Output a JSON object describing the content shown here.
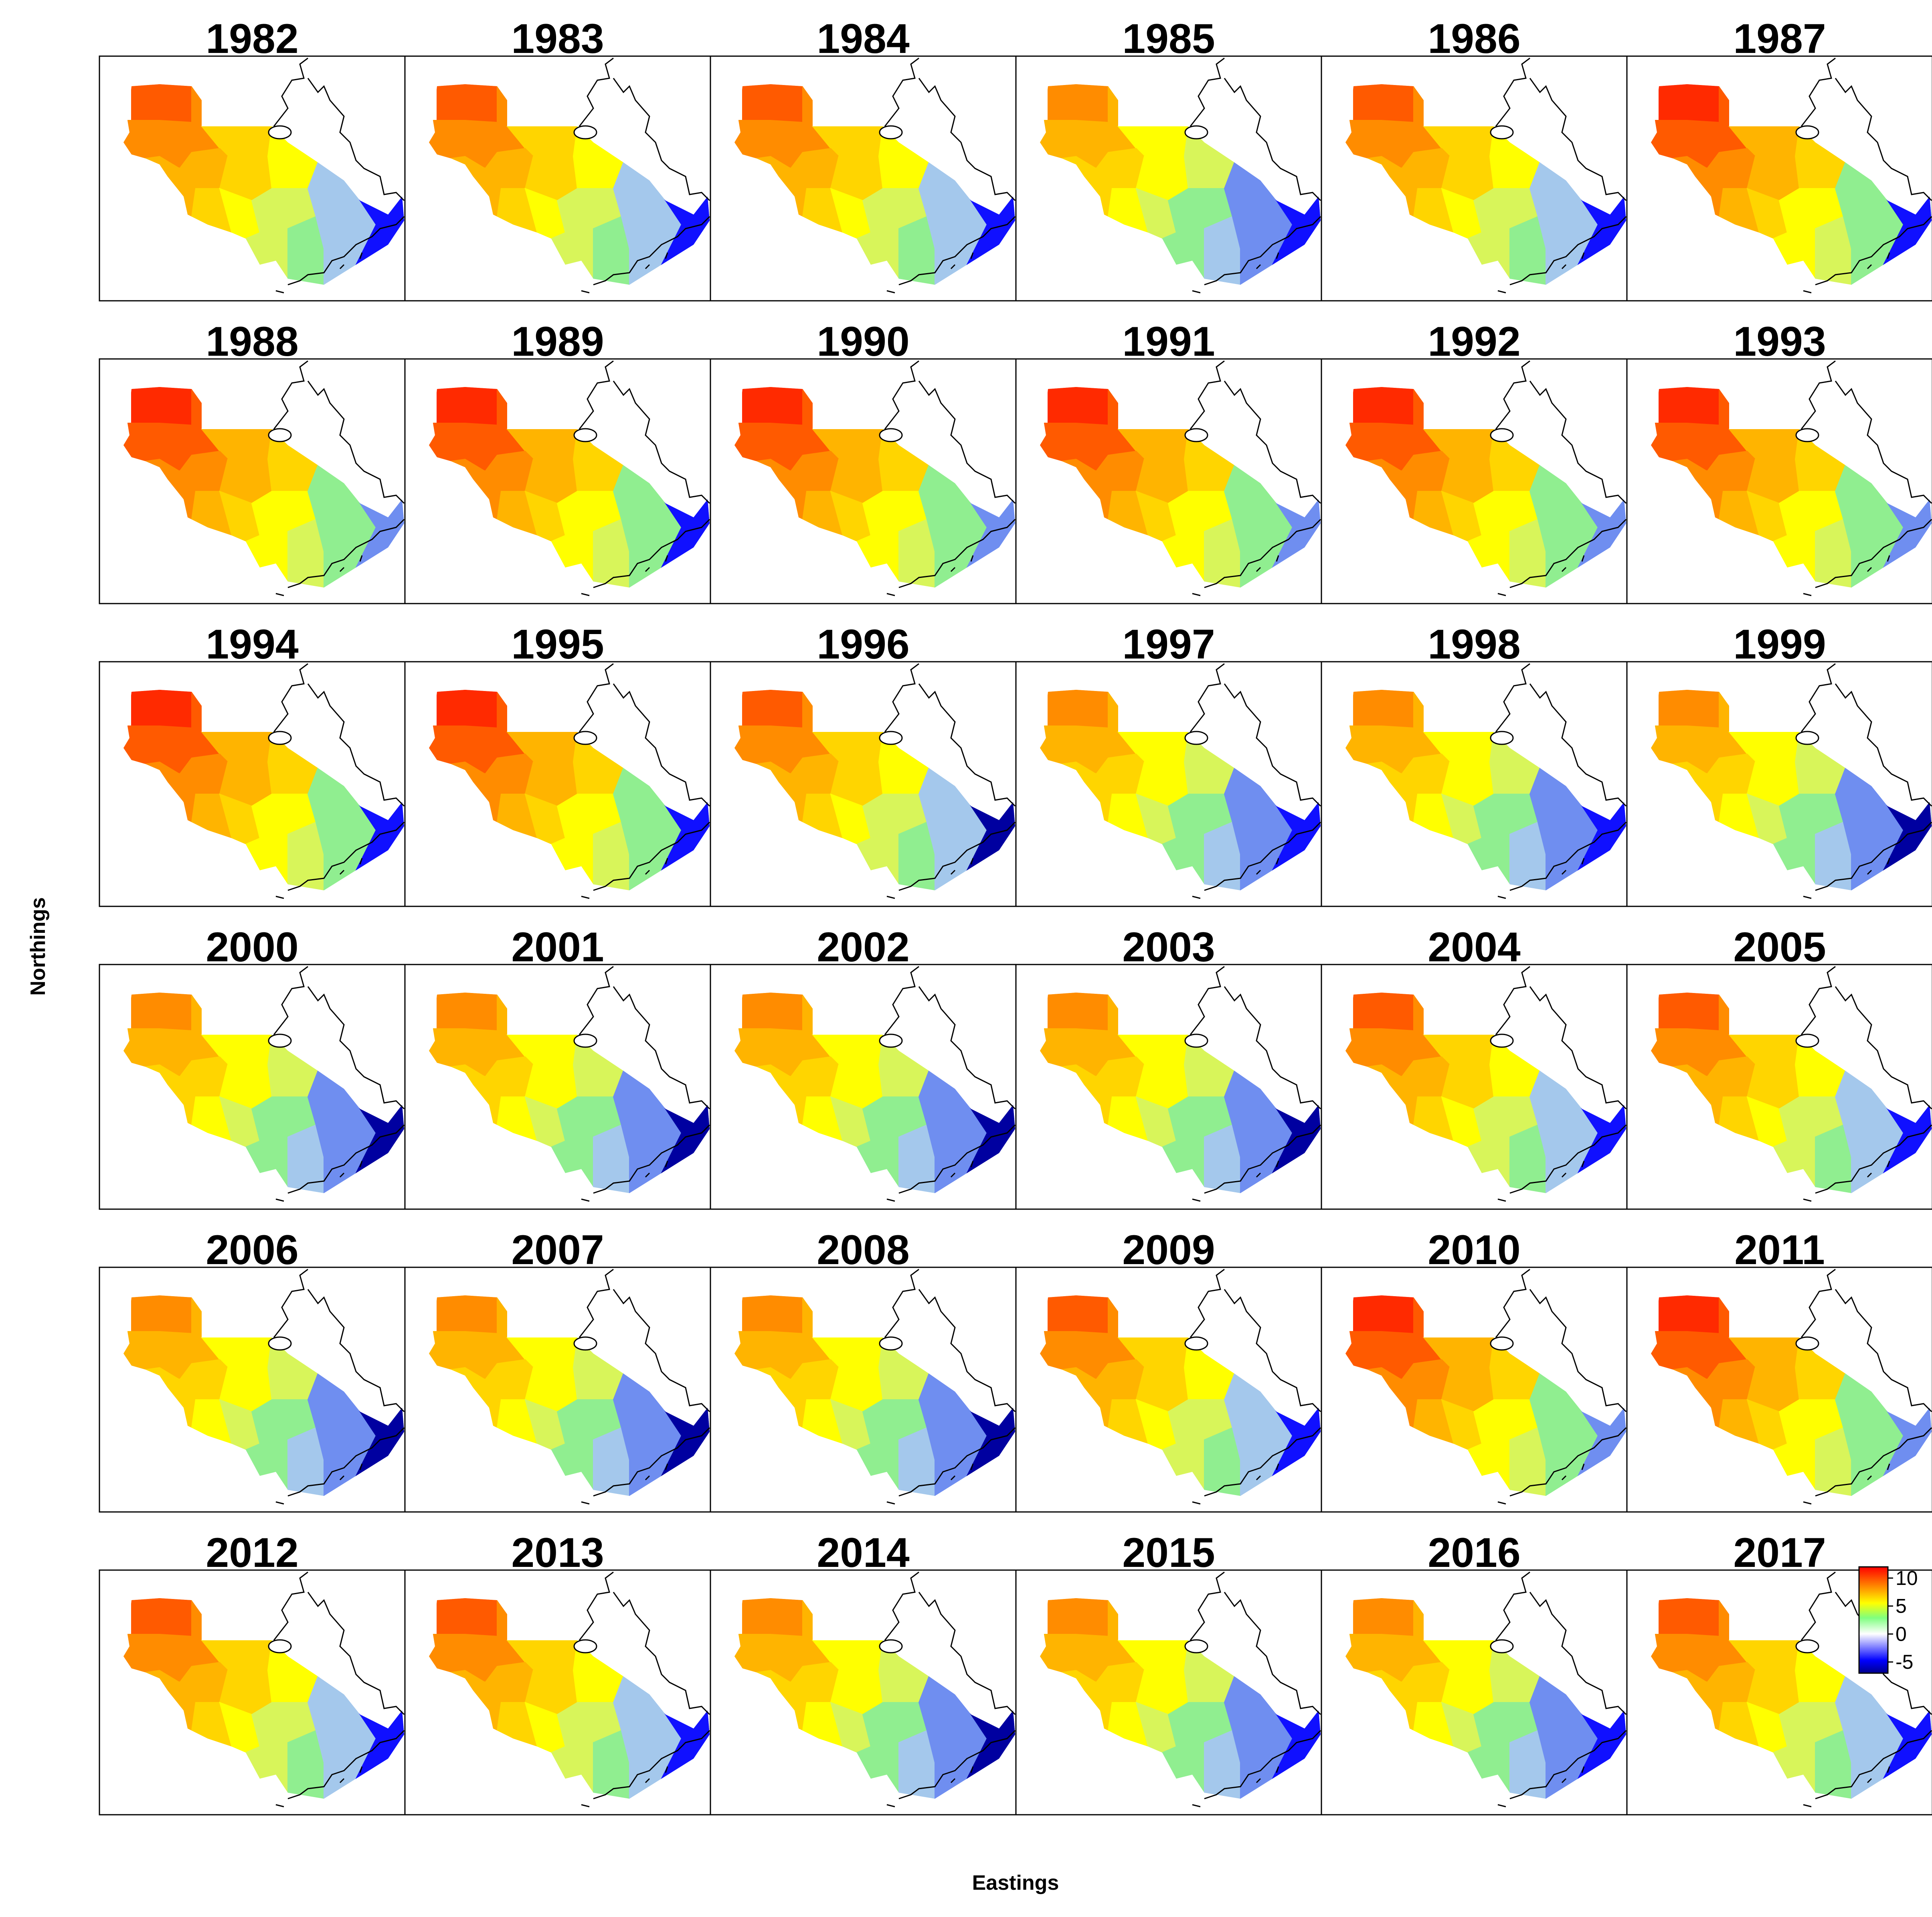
{
  "figure": {
    "xlabel": "Eastings",
    "ylabel": "Northings"
  },
  "panels": [
    {
      "label": "1982"
    },
    {
      "label": "1983"
    },
    {
      "label": "1984"
    },
    {
      "label": "1985"
    },
    {
      "label": "1986"
    },
    {
      "label": "1987"
    },
    {
      "label": "1988"
    },
    {
      "label": "1989"
    },
    {
      "label": "1990"
    },
    {
      "label": "1991"
    },
    {
      "label": "1992"
    },
    {
      "label": "1993"
    },
    {
      "label": "1994"
    },
    {
      "label": "1995"
    },
    {
      "label": "1996"
    },
    {
      "label": "1997"
    },
    {
      "label": "1998"
    },
    {
      "label": "1999"
    },
    {
      "label": "2000"
    },
    {
      "label": "2001"
    },
    {
      "label": "2002"
    },
    {
      "label": "2003"
    },
    {
      "label": "2004"
    },
    {
      "label": "2005"
    },
    {
      "label": "2006"
    },
    {
      "label": "2007"
    },
    {
      "label": "2008"
    },
    {
      "label": "2009"
    },
    {
      "label": "2010"
    },
    {
      "label": "2011"
    },
    {
      "label": "2012"
    },
    {
      "label": "2013"
    },
    {
      "label": "2014"
    },
    {
      "label": "2015"
    },
    {
      "label": "2016"
    },
    {
      "label": "2017"
    }
  ],
  "legend": {
    "ticks": [
      "10",
      "5",
      "0",
      "-5"
    ],
    "tick_values": [
      10,
      5,
      0,
      -5
    ],
    "range": [
      -7,
      12
    ],
    "colors": [
      "#00008b",
      "#0000ff",
      "#ffffff",
      "#7fff7f",
      "#ffff00",
      "#ff7f00",
      "#ff0000"
    ]
  },
  "colors": {
    "red": "#ff2a00",
    "orange": "#ff8c00",
    "yellow": "#ffff00",
    "green": "#90ee90",
    "light_blue": "#a4c8ec",
    "blue": "#1010ff",
    "dark_blue": "#0000a0"
  }
}
